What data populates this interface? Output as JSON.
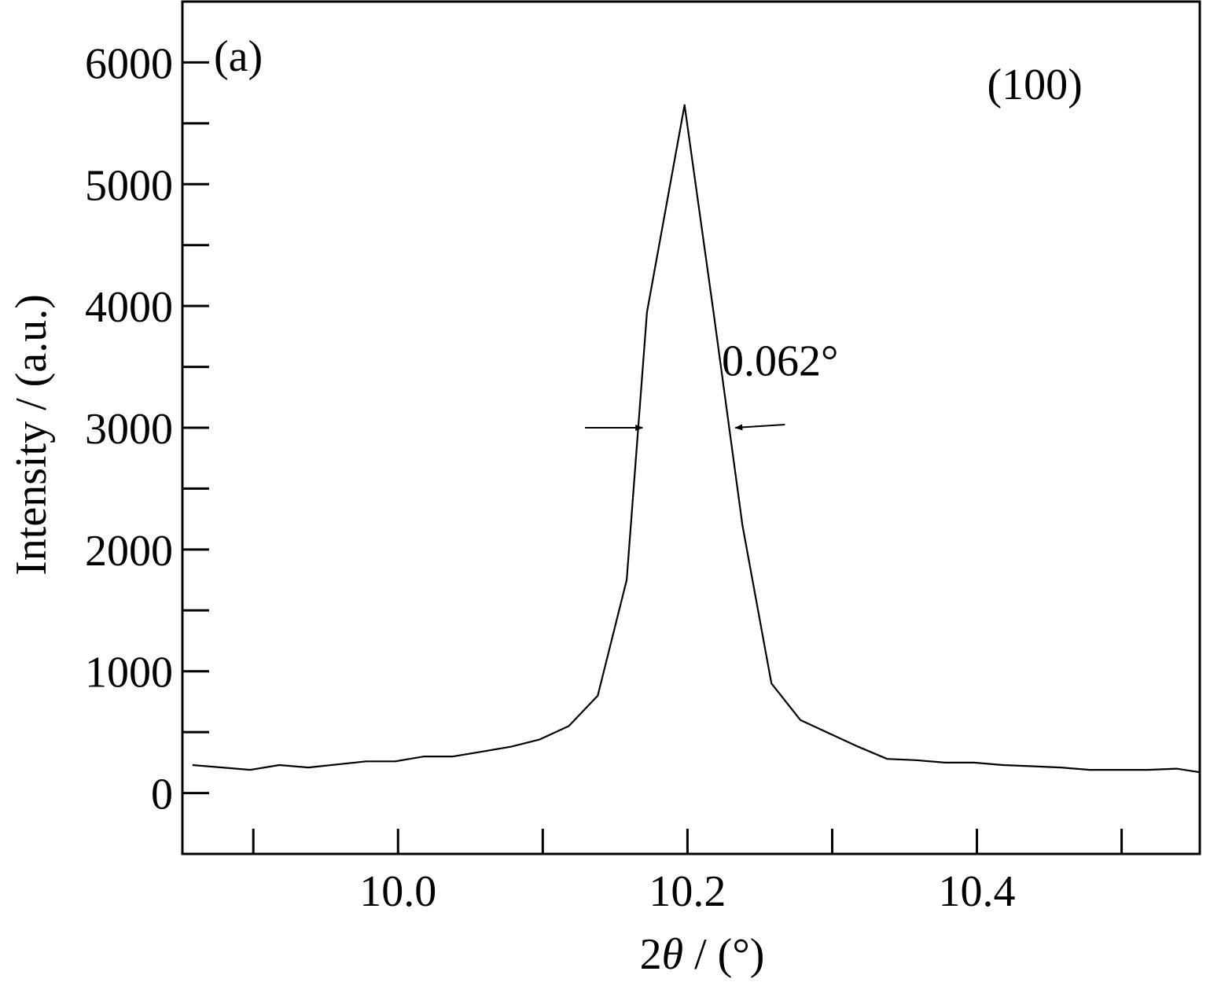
{
  "chart_data": {
    "type": "line",
    "title": "",
    "panel_label": "(a)",
    "xlabel_prefix": "2",
    "xlabel_symbol": "θ",
    "xlabel_suffix": " / (°)",
    "ylabel": "Intensity / (a.u.)",
    "xlim": [
      9.851,
      10.554
    ],
    "ylim": [
      -500,
      6500
    ],
    "x_major_ticks": [
      10.0,
      10.2,
      10.4
    ],
    "x_tick_labels": [
      "10.0",
      "10.2",
      "10.4"
    ],
    "x_minor_ticks": [
      9.9,
      10.1,
      10.3,
      10.5
    ],
    "y_major_ticks": [
      0,
      1000,
      2000,
      3000,
      4000,
      5000,
      6000
    ],
    "y_tick_labels": [
      "0",
      "1000",
      "2000",
      "3000",
      "4000",
      "5000",
      "6000"
    ],
    "y_minor_ticks": [
      500,
      1500,
      2500,
      3500,
      4500,
      5500
    ],
    "grid": false,
    "legend": "none",
    "series": [
      {
        "color": "#000000",
        "x": [
          9.858,
          9.898,
          9.918,
          9.938,
          9.978,
          9.998,
          10.018,
          10.038,
          10.058,
          10.078,
          10.098,
          10.118,
          10.138,
          10.158,
          10.172,
          10.198,
          10.218,
          10.238,
          10.258,
          10.278,
          10.298,
          10.318,
          10.338,
          10.358,
          10.378,
          10.398,
          10.418,
          10.438,
          10.458,
          10.478,
          10.498,
          10.518,
          10.538,
          10.554
        ],
        "y": [
          230,
          190,
          230,
          210,
          260,
          260,
          300,
          300,
          340,
          380,
          440,
          550,
          800,
          1750,
          3950,
          5650,
          3950,
          2200,
          900,
          600,
          490,
          380,
          280,
          270,
          250,
          250,
          230,
          220,
          210,
          190,
          190,
          190,
          200,
          170
        ]
      }
    ],
    "annotations": [
      {
        "text": "(100)",
        "x": 10.44,
        "y": 5700
      },
      {
        "text": "0.062°",
        "x": 10.264,
        "y": 3430
      }
    ],
    "fwhm_marker": {
      "y": 3000,
      "left_x": 10.17,
      "right_x": 10.232
    }
  }
}
